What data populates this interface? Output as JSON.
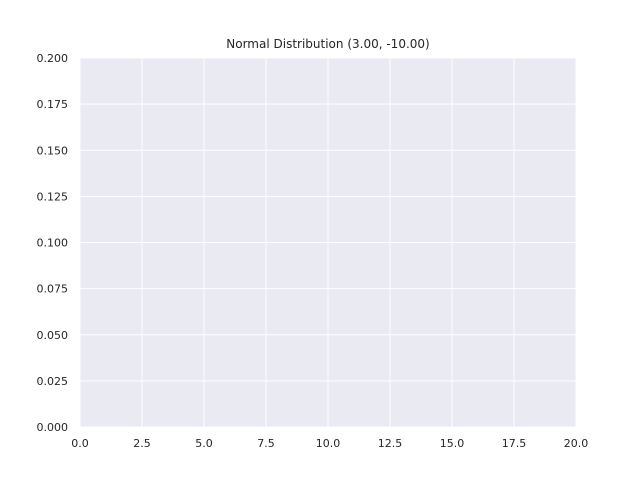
{
  "chart_data": {
    "type": "line",
    "title": "Normal Distribution (3.00, -10.00)",
    "xlabel": "",
    "ylabel": "",
    "xlim": [
      0.0,
      20.0
    ],
    "ylim": [
      0.0,
      0.2
    ],
    "x_ticks": [
      "0.0",
      "2.5",
      "5.0",
      "7.5",
      "10.0",
      "12.5",
      "15.0",
      "17.5",
      "20.0"
    ],
    "y_ticks": [
      "0.000",
      "0.025",
      "0.050",
      "0.075",
      "0.100",
      "0.125",
      "0.150",
      "0.175",
      "0.200"
    ],
    "grid": true,
    "series": [],
    "colors": {
      "plot_background": "#eaeaf2",
      "grid": "#ffffff",
      "text": "#262626",
      "figure_background": "#ffffff"
    }
  }
}
